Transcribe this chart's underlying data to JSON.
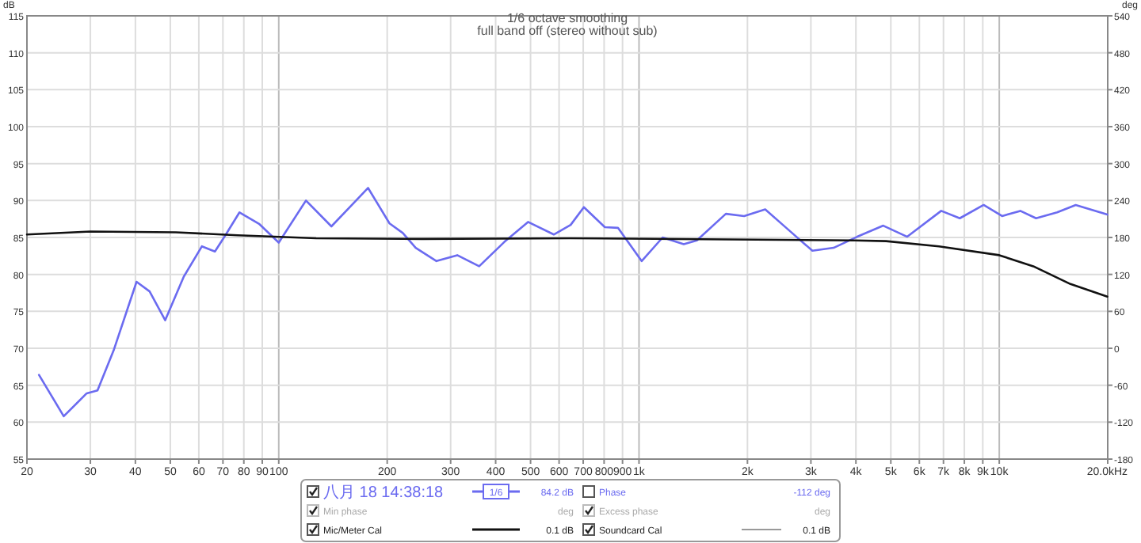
{
  "chart_data": {
    "type": "line",
    "title": "1/6 octave smoothing",
    "subtitle": "full band off (stereo without sub)",
    "ylabel": "dB",
    "y2label": "deg",
    "log": "x",
    "grid": true,
    "legend": "bottom",
    "marker": "none",
    "line_style": "solid",
    "xlim": [
      20,
      20000
    ],
    "ylim": [
      55,
      115
    ],
    "y2lim": [
      -180,
      540
    ],
    "xticks": [
      20,
      30,
      40,
      50,
      60,
      70,
      80,
      90,
      100,
      200,
      300,
      400,
      500,
      600,
      700,
      800,
      900,
      {
        "value": 1000,
        "label": "1k"
      },
      {
        "value": 2000,
        "label": "2k"
      },
      {
        "value": 3000,
        "label": "3k"
      },
      {
        "value": 4000,
        "label": "4k"
      },
      {
        "value": 5000,
        "label": "5k"
      },
      {
        "value": 6000,
        "label": "6k"
      },
      {
        "value": 7000,
        "label": "7k"
      },
      {
        "value": 8000,
        "label": "8k"
      },
      {
        "value": 9000,
        "label": "9k"
      },
      {
        "value": 10000,
        "label": "10k"
      },
      {
        "value": 20000,
        "label": "20.0k"
      }
    ],
    "xlabel": "Hz",
    "yticks": [
      55,
      60,
      65,
      70,
      75,
      80,
      85,
      90,
      95,
      100,
      105,
      110,
      115
    ],
    "y2ticks": [
      -180,
      -120,
      -60,
      0,
      60,
      120,
      180,
      240,
      300,
      360,
      420,
      480,
      540
    ],
    "series": [
      {
        "name": "八月 18 14:38:18",
        "color": "#6b6bf0",
        "x": [
          21.6,
          25.3,
          29.3,
          31.4,
          34.8,
          40.3,
          43.8,
          48.4,
          54.5,
          61.2,
          66.5,
          71.1,
          77.8,
          88.4,
          100,
          119,
          140,
          177,
          203,
          221,
          240,
          274,
          313,
          360,
          423,
          492,
          580,
          646,
          703,
          804,
          874,
          1017,
          1163,
          1331,
          1447,
          1742,
          1958,
          2240,
          2563,
          3029,
          3469,
          4034,
          4764,
          5552,
          6900,
          7770,
          9050,
          10180,
          11440,
          12650,
          14480,
          16300,
          19950
        ],
        "values": [
          66.4,
          60.8,
          63.9,
          64.3,
          69.7,
          79.0,
          77.7,
          73.8,
          79.7,
          83.8,
          83.1,
          85.3,
          88.4,
          86.8,
          84.3,
          90.0,
          86.5,
          91.7,
          86.9,
          85.6,
          83.6,
          81.8,
          82.6,
          81.1,
          84.4,
          87.1,
          85.4,
          86.7,
          89.1,
          86.4,
          86.3,
          81.8,
          85.0,
          84.1,
          84.6,
          88.2,
          87.9,
          88.8,
          86.3,
          83.2,
          83.6,
          85.1,
          86.6,
          85.1,
          88.6,
          87.6,
          89.4,
          87.9,
          88.6,
          87.6,
          88.4,
          89.4,
          88.1
        ]
      },
      {
        "name": "Mic/Meter Cal",
        "color": "#111111",
        "x": [
          20,
          30,
          51.8,
          77,
          127,
          250,
          646,
          3970,
          4850,
          6800,
          10000,
          12430,
          15760,
          19950
        ],
        "values": [
          85.4,
          85.8,
          85.7,
          85.3,
          84.9,
          84.8,
          84.9,
          84.6,
          84.5,
          83.8,
          82.6,
          81.1,
          78.7,
          77.0
        ]
      }
    ],
    "annotations": [
      "1/6",
      "84.2 dB",
      "Phase",
      "-112 deg",
      "Min phase",
      "deg",
      "Excess phase",
      "deg",
      "0.1 dB",
      "Soundcard Cal",
      "0.1 dB"
    ]
  }
}
